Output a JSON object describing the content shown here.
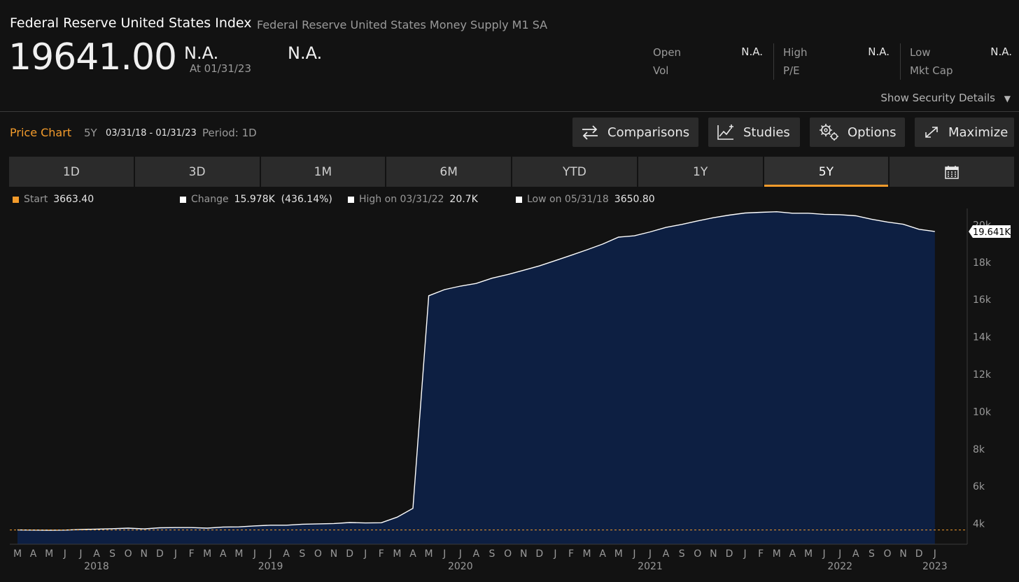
{
  "header": {
    "title": "Federal Reserve United States Index",
    "subtitle": "Federal Reserve United States Money Supply M1 SA",
    "price": "19641.00",
    "change": "N.A.",
    "as_of": "At 01/31/23",
    "change_pct": "N.A."
  },
  "stats": {
    "open_label": "Open",
    "open_value": "N.A.",
    "vol_label": "Vol",
    "high_label": "High",
    "high_value": "N.A.",
    "pe_label": "P/E",
    "low_label": "Low",
    "low_value": "N.A.",
    "mktcap_label": "Mkt Cap"
  },
  "show_details": "Show Security Details",
  "price_chart": {
    "title": "Price Chart",
    "range": "5Y",
    "dates": "03/31/18 - 01/31/23",
    "period": "Period: 1D"
  },
  "toolbar": {
    "comparisons": "Comparisons",
    "studies": "Studies",
    "options": "Options",
    "maximize": "Maximize"
  },
  "tabs": [
    "1D",
    "3D",
    "1M",
    "6M",
    "YTD",
    "1Y",
    "5Y"
  ],
  "active_tab": "5Y",
  "legend": {
    "start_label": "Start",
    "start_value": "3663.40",
    "change_label": "Change",
    "change_value": "15.978K  (436.14%)",
    "high_label": "High on 03/31/22",
    "high_value": "20.7K",
    "low_label": "Low on 05/31/18",
    "low_value": "3650.80"
  },
  "colors": {
    "accent": "#f39b2b",
    "area_fill": "#0d1f42",
    "line": "#ffffff",
    "start_marker": "#f39b2b"
  },
  "chart_data": {
    "type": "area",
    "x": [
      "2018-03-31",
      "2018-04-30",
      "2018-05-31",
      "2018-06-30",
      "2018-07-31",
      "2018-08-31",
      "2018-09-30",
      "2018-10-31",
      "2018-11-30",
      "2018-12-31",
      "2019-01-31",
      "2019-02-28",
      "2019-03-31",
      "2019-04-30",
      "2019-05-31",
      "2019-06-30",
      "2019-07-31",
      "2019-08-31",
      "2019-09-30",
      "2019-10-31",
      "2019-11-30",
      "2019-12-31",
      "2020-01-31",
      "2020-02-29",
      "2020-03-31",
      "2020-04-30",
      "2020-05-31",
      "2020-06-30",
      "2020-07-31",
      "2020-08-31",
      "2020-09-30",
      "2020-10-31",
      "2020-11-30",
      "2020-12-31",
      "2021-01-31",
      "2021-02-28",
      "2021-03-31",
      "2021-04-30",
      "2021-05-31",
      "2021-06-30",
      "2021-07-31",
      "2021-08-31",
      "2021-09-30",
      "2021-10-31",
      "2021-11-30",
      "2021-12-31",
      "2022-01-31",
      "2022-02-28",
      "2022-03-31",
      "2022-04-30",
      "2022-05-31",
      "2022-06-30",
      "2022-07-31",
      "2022-08-31",
      "2022-09-30",
      "2022-10-31",
      "2022-11-30",
      "2022-12-31",
      "2023-01-31"
    ],
    "values": [
      3663.4,
      3655,
      3650.8,
      3655,
      3690,
      3710,
      3730,
      3760,
      3720,
      3780,
      3790,
      3790,
      3760,
      3820,
      3830,
      3880,
      3920,
      3920,
      3970,
      3990,
      4010,
      4060,
      4040,
      4050,
      4350,
      4820,
      16200,
      16530,
      16720,
      16860,
      17140,
      17340,
      17570,
      17800,
      18080,
      18370,
      18660,
      18970,
      19340,
      19410,
      19620,
      19860,
      20020,
      20210,
      20380,
      20520,
      20630,
      20670,
      20700,
      20620,
      20620,
      20560,
      20540,
      20480,
      20300,
      20150,
      20030,
      19760,
      19641
    ],
    "ylim": [
      2900,
      20800
    ],
    "y_ticks": [
      "4k",
      "6k",
      "8k",
      "10k",
      "12k",
      "14k",
      "16k",
      "18k",
      "20k"
    ],
    "y_tick_values": [
      4000,
      6000,
      8000,
      10000,
      12000,
      14000,
      16000,
      18000,
      20000
    ],
    "last_label": "19.641K",
    "start_value": 3663.4,
    "month_labels": [
      "M",
      "A",
      "M",
      "J",
      "J",
      "A",
      "S",
      "O",
      "N",
      "D",
      "J",
      "F",
      "M",
      "A",
      "M",
      "J",
      "J",
      "A",
      "S",
      "O",
      "N",
      "D",
      "J",
      "F",
      "M",
      "A",
      "M",
      "J",
      "J",
      "A",
      "S",
      "O",
      "N",
      "D",
      "J",
      "F",
      "M",
      "A",
      "M",
      "J",
      "J",
      "A",
      "S",
      "O",
      "N",
      "D",
      "J",
      "F",
      "M",
      "A",
      "M",
      "J",
      "J",
      "A",
      "S",
      "O",
      "N",
      "D",
      "J"
    ],
    "year_labels": [
      "2018",
      "2019",
      "2020",
      "2021",
      "2022",
      "2023"
    ]
  }
}
